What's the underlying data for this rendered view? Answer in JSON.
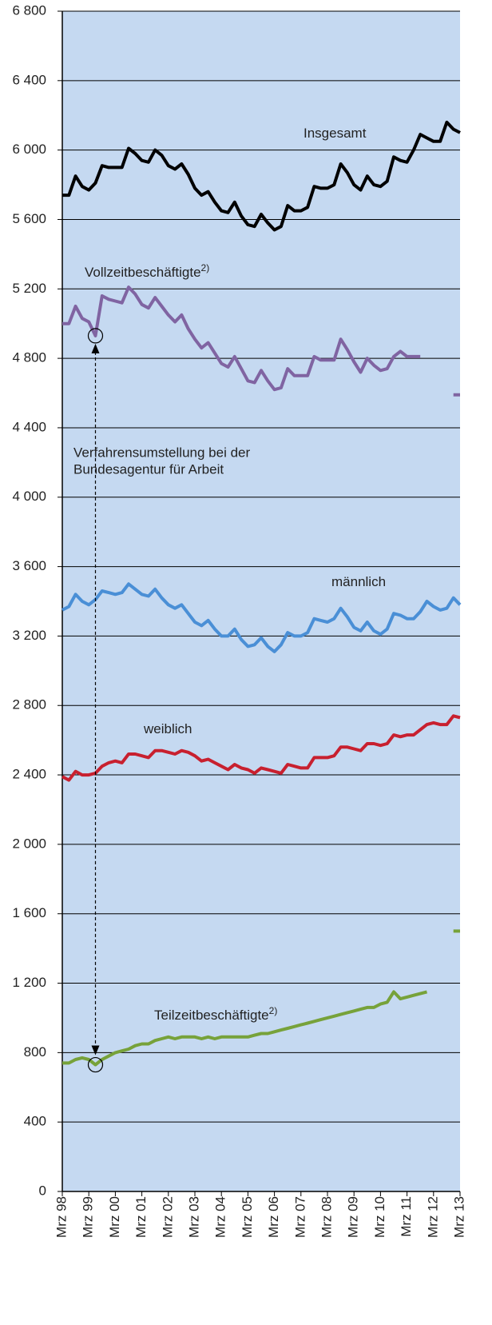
{
  "chart_data": {
    "type": "line",
    "categories": [
      "Mrz 98",
      null,
      null,
      null,
      "Mrz 99",
      null,
      null,
      null,
      "Mrz 00",
      null,
      null,
      null,
      "Mrz 01",
      null,
      null,
      null,
      "Mrz 02",
      null,
      null,
      null,
      "Mrz 03",
      null,
      null,
      null,
      "Mrz 04",
      null,
      null,
      null,
      "Mrz 05",
      null,
      null,
      null,
      "Mrz 06",
      null,
      null,
      null,
      "Mrz 07",
      null,
      null,
      null,
      "Mrz 08",
      null,
      null,
      null,
      "Mrz 09",
      null,
      null,
      null,
      "Mrz 10",
      null,
      null,
      null,
      "Mrz 11",
      null,
      null,
      null,
      "Mrz 12",
      null,
      null,
      null,
      "Mrz 13"
    ],
    "series": [
      {
        "name": "Insgesamt",
        "color": "#000000",
        "values": [
          5740,
          5740,
          5850,
          5790,
          5770,
          5810,
          5910,
          5900,
          5900,
          5900,
          6010,
          5980,
          5940,
          5930,
          6000,
          5970,
          5910,
          5890,
          5920,
          5860,
          5780,
          5740,
          5760,
          5700,
          5650,
          5640,
          5700,
          5620,
          5570,
          5560,
          5630,
          5580,
          5540,
          5560,
          5680,
          5650,
          5650,
          5670,
          5790,
          5780,
          5780,
          5800,
          5920,
          5870,
          5800,
          5770,
          5850,
          5800,
          5790,
          5820,
          5960,
          5940,
          5930,
          6000,
          6090,
          6070,
          6050,
          6050,
          6160,
          6120,
          6100
        ]
      },
      {
        "name": "Vollzeitbeschäftigte",
        "note": "2)",
        "color": "#8064a2",
        "values": [
          5000,
          5000,
          5100,
          5030,
          5010,
          4930,
          5160,
          5140,
          5130,
          5120,
          5210,
          5170,
          5110,
          5090,
          5150,
          5100,
          5050,
          5010,
          5050,
          4970,
          4910,
          4860,
          4890,
          4830,
          4770,
          4750,
          4810,
          4740,
          4670,
          4660,
          4730,
          4670,
          4620,
          4630,
          4740,
          4700,
          4700,
          4700,
          4810,
          4790,
          4790,
          4790,
          4910,
          4850,
          4780,
          4720,
          4800,
          4760,
          4730,
          4740,
          4810,
          4840,
          4810,
          4810,
          4810,
          null,
          null,
          null,
          null,
          4590,
          4590
        ]
      },
      {
        "name": "männlich",
        "color": "#4a8fd6",
        "values": [
          3350,
          3370,
          3440,
          3400,
          3380,
          3410,
          3460,
          3450,
          3440,
          3450,
          3500,
          3470,
          3440,
          3430,
          3470,
          3420,
          3380,
          3360,
          3380,
          3330,
          3280,
          3260,
          3290,
          3240,
          3200,
          3200,
          3240,
          3180,
          3140,
          3150,
          3190,
          3140,
          3110,
          3150,
          3220,
          3200,
          3200,
          3220,
          3300,
          3290,
          3280,
          3300,
          3360,
          3310,
          3250,
          3230,
          3280,
          3230,
          3210,
          3240,
          3330,
          3320,
          3300,
          3300,
          3340,
          3400,
          3370,
          3350,
          3360,
          3420,
          3380
        ]
      },
      {
        "name": "weiblich",
        "color": "#c8202f",
        "values": [
          2390,
          2370,
          2420,
          2400,
          2400,
          2410,
          2450,
          2470,
          2480,
          2470,
          2520,
          2520,
          2510,
          2500,
          2540,
          2540,
          2530,
          2520,
          2540,
          2530,
          2510,
          2480,
          2490,
          2470,
          2450,
          2430,
          2460,
          2440,
          2430,
          2410,
          2440,
          2430,
          2420,
          2410,
          2460,
          2450,
          2440,
          2440,
          2500,
          2500,
          2500,
          2510,
          2560,
          2560,
          2550,
          2540,
          2580,
          2580,
          2570,
          2580,
          2630,
          2620,
          2630,
          2630,
          2660,
          2690,
          2700,
          2690,
          2690,
          2740,
          2730
        ]
      },
      {
        "name": "Teilzeitbeschäftigte",
        "note": "2)",
        "color": "#77a23a",
        "values": [
          740,
          740,
          760,
          770,
          760,
          730,
          760,
          780,
          800,
          810,
          820,
          840,
          850,
          850,
          870,
          880,
          890,
          880,
          890,
          890,
          890,
          880,
          890,
          880,
          890,
          890,
          890,
          890,
          890,
          900,
          910,
          910,
          920,
          930,
          940,
          950,
          960,
          970,
          980,
          990,
          1000,
          1010,
          1020,
          1030,
          1040,
          1050,
          1060,
          1060,
          1080,
          1090,
          1150,
          1110,
          1120,
          1130,
          1140,
          1150,
          null,
          null,
          null,
          1500,
          1500
        ]
      }
    ],
    "annotation": [
      "Verfahrensumstellung bei der",
      "Bundesagentur für Arbeit"
    ],
    "ylim": [
      0,
      6800
    ],
    "yticks": [
      0,
      400,
      800,
      {
        "value": 1200,
        "label": "1 200"
      },
      {
        "value": 1600,
        "label": "1 600"
      },
      {
        "value": 2000,
        "label": "2 000"
      },
      {
        "value": 2400,
        "label": "2 400"
      },
      {
        "value": 2800,
        "label": "2 800"
      },
      {
        "value": 3200,
        "label": "3 200"
      },
      {
        "value": 3600,
        "label": "3 600"
      },
      {
        "value": 4000,
        "label": "4 000"
      },
      {
        "value": 4400,
        "label": "4 400"
      },
      {
        "value": 4800,
        "label": "4 800"
      },
      {
        "value": 5200,
        "label": "5 200"
      },
      {
        "value": 5600,
        "label": "5 600"
      },
      {
        "value": 6000,
        "label": "6 000"
      },
      {
        "value": 6400,
        "label": "6 400"
      },
      {
        "value": 6800,
        "label": "6 800"
      }
    ],
    "grid": true,
    "background": "#c5d9f1"
  }
}
